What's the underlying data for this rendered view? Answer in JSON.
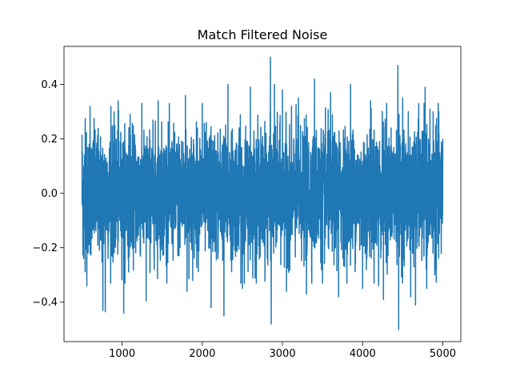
{
  "chart_data": {
    "type": "line",
    "title": "Match Filtered Noise",
    "xlabel": "",
    "ylabel": "",
    "xlim": [
      275,
      5225
    ],
    "ylim": [
      -0.545,
      0.54
    ],
    "xticks": [
      1000,
      2000,
      3000,
      4000,
      5000
    ],
    "xtick_labels": [
      "1000",
      "2000",
      "3000",
      "4000",
      "5000"
    ],
    "yticks": [
      -0.4,
      -0.2,
      0.0,
      0.2,
      0.4
    ],
    "ytick_labels": [
      "−0.4",
      "−0.2",
      "0.0",
      "0.2",
      "0.4"
    ],
    "grid": false,
    "legend": "none",
    "series_color": "#1f77b4",
    "series": [
      {
        "x_start": 500,
        "x_end": 5000,
        "noise_std": 0.11,
        "points": [
          [
            500,
            0.215
          ],
          [
            520,
            -0.24
          ],
          [
            540,
            0.275
          ],
          [
            560,
            -0.34
          ],
          [
            600,
            0.32
          ],
          [
            760,
            -0.43
          ],
          [
            790,
            -0.435
          ],
          [
            860,
            0.32
          ],
          [
            950,
            0.34
          ],
          [
            1020,
            -0.44
          ],
          [
            1100,
            0.29
          ],
          [
            1300,
            -0.395
          ],
          [
            1450,
            0.34
          ],
          [
            1790,
            0.36
          ],
          [
            1810,
            -0.36
          ],
          [
            2000,
            0.33
          ],
          [
            2110,
            -0.42
          ],
          [
            2270,
            -0.45
          ],
          [
            2320,
            0.4
          ],
          [
            2500,
            -0.35
          ],
          [
            2600,
            0.39
          ],
          [
            2850,
            0.5
          ],
          [
            2860,
            -0.48
          ],
          [
            2900,
            0.4
          ],
          [
            3000,
            0.38
          ],
          [
            3050,
            -0.36
          ],
          [
            3200,
            0.35
          ],
          [
            3300,
            -0.37
          ],
          [
            3400,
            0.42
          ],
          [
            3500,
            -0.33
          ],
          [
            3600,
            0.37
          ],
          [
            3700,
            -0.38
          ],
          [
            3850,
            0.4
          ],
          [
            4000,
            -0.35
          ],
          [
            4100,
            0.34
          ],
          [
            4200,
            -0.34
          ],
          [
            4260,
            -0.39
          ],
          [
            4300,
            0.33
          ],
          [
            4440,
            0.47
          ],
          [
            4450,
            -0.5
          ],
          [
            4500,
            0.35
          ],
          [
            4600,
            -0.38
          ],
          [
            4660,
            -0.41
          ],
          [
            4700,
            0.33
          ],
          [
            4780,
            0.39
          ],
          [
            4800,
            -0.35
          ],
          [
            4880,
            0.3
          ],
          [
            4900,
            -0.3
          ],
          [
            4950,
            0.3
          ],
          [
            5000,
            0.2
          ]
        ]
      }
    ]
  }
}
